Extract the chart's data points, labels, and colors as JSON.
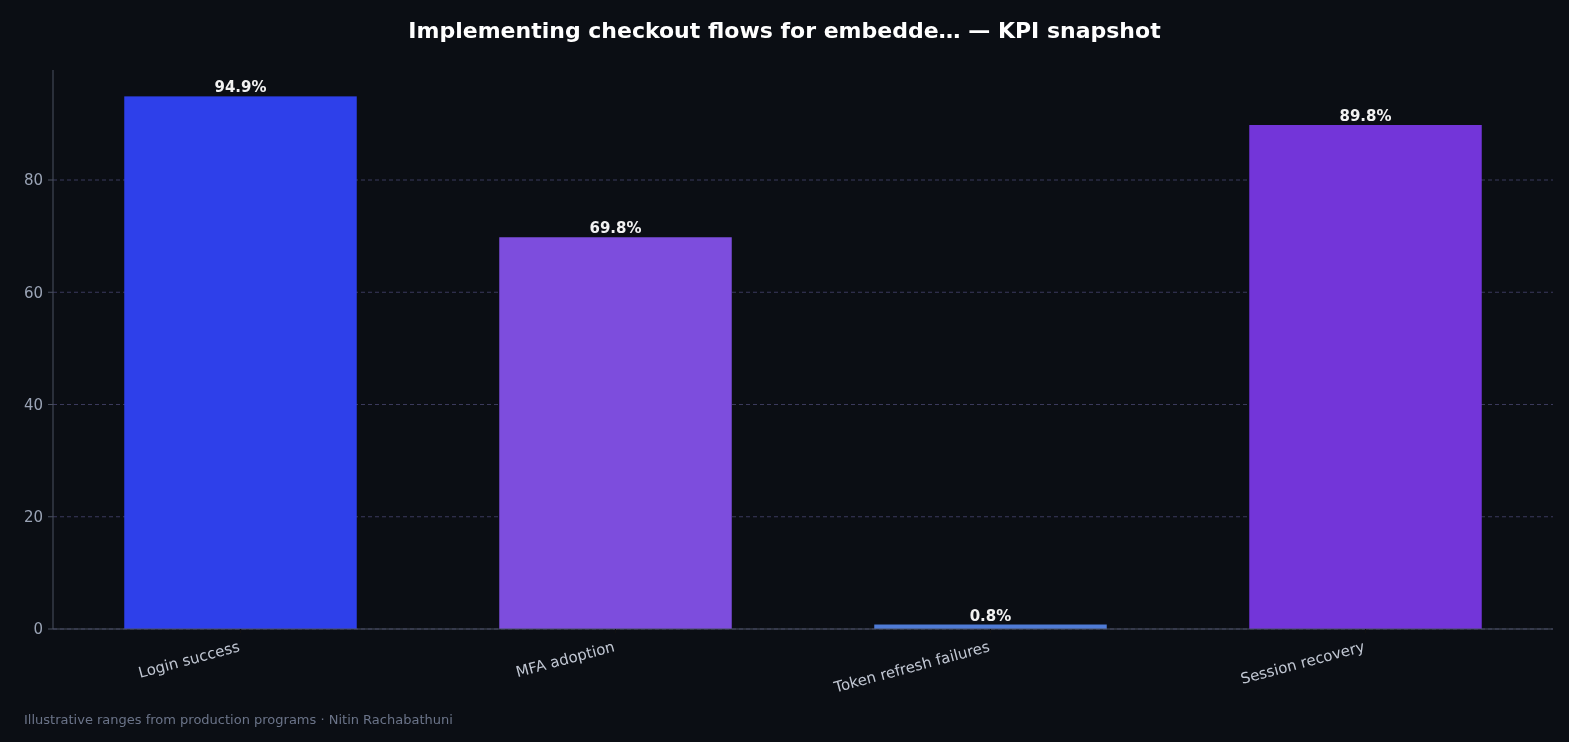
{
  "chart_data": {
    "type": "bar",
    "title": "Implementing checkout flows for embedde… — KPI snapshot",
    "categories": [
      "Login success",
      "MFA adoption",
      "Token refresh failures",
      "Session recovery"
    ],
    "values": [
      94.9,
      69.8,
      0.8,
      89.8
    ],
    "colors": [
      "#2e40ea",
      "#7d4ddd",
      "#4f7bd6",
      "#7335d9"
    ],
    "value_labels": [
      "94.9%",
      "69.8%",
      "0.8%",
      "89.8%"
    ],
    "ylim": [
      0,
      99.6
    ],
    "yticks": [
      0,
      20,
      40,
      60,
      80
    ],
    "grid": "y",
    "annotations": [
      "Illustrative ranges from production programs · Nitin Rachabathuni"
    ]
  }
}
